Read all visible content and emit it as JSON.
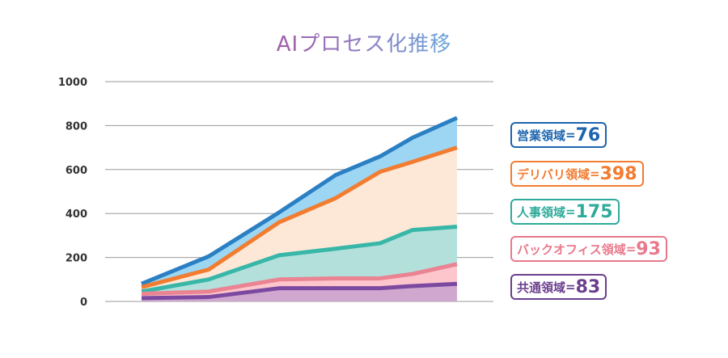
{
  "chart_data": {
    "type": "area",
    "title": "AIプロセス化推移",
    "ylim": [
      0,
      1000
    ],
    "yticks": [
      "0",
      "200",
      "400",
      "600",
      "800",
      "1000"
    ],
    "x": [
      1,
      2,
      3,
      4,
      5,
      6,
      7
    ],
    "series": [
      {
        "name": "共通領域",
        "label": "83",
        "values": [
          15,
          20,
          60,
          60,
          60,
          70,
          80
        ],
        "line": "#7b4aa0",
        "fill": "#d0a8cf"
      },
      {
        "name": "バックオフィス領域",
        "label": "93",
        "values": [
          20,
          25,
          40,
          45,
          45,
          55,
          90
        ],
        "line": "#ea8392",
        "fill": "#fdc5cc"
      },
      {
        "name": "人事領域",
        "label": "175",
        "values": [
          10,
          55,
          110,
          135,
          160,
          200,
          170
        ],
        "line": "#38b7a8",
        "fill": "#b3e0db"
      },
      {
        "name": "デリバリ領域",
        "label": "398",
        "values": [
          20,
          45,
          150,
          230,
          325,
          310,
          360
        ],
        "line": "#f27c2f",
        "fill": "#fde8d8"
      },
      {
        "name": "営業領域",
        "label": "76",
        "values": [
          15,
          60,
          45,
          105,
          70,
          110,
          135
        ],
        "line": "#2b7fc3",
        "fill": "#9cd6f3"
      }
    ]
  },
  "legend_badges": [
    {
      "name": "営業領域",
      "eq": "=",
      "value": "76",
      "color": "#1c64ad"
    },
    {
      "name": "デリバリ領域",
      "eq": "=",
      "value": "398",
      "color": "#f27c2f"
    },
    {
      "name": "人事領域",
      "eq": "=",
      "value": "175",
      "color": "#2eaa9a"
    },
    {
      "name": "バックオフィス領域",
      "eq": "=",
      "value": "93",
      "color": "#e8798c"
    },
    {
      "name": "共通領域",
      "eq": "=",
      "value": "83",
      "color": "#6b3e8e"
    }
  ]
}
